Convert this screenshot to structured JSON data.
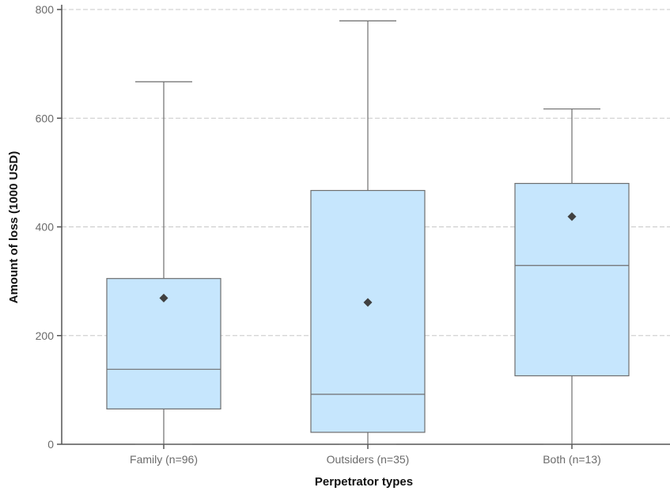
{
  "chart_data": {
    "type": "boxplot",
    "title": "",
    "xlabel": "Perpetrator types",
    "ylabel": "Amount of loss (1000 USD)",
    "ylim": [
      0,
      800
    ],
    "yticks": [
      0,
      200,
      400,
      600,
      800
    ],
    "grid": true,
    "categories": [
      "Family (n=96)",
      "Outsiders (n=35)",
      "Both (n=13)"
    ],
    "boxes": [
      {
        "whisker_low": 0,
        "q1": 65,
        "median": 138,
        "q3": 305,
        "whisker_high": 667,
        "mean": 269
      },
      {
        "whisker_low": 0,
        "q1": 22,
        "median": 92,
        "q3": 467,
        "whisker_high": 779,
        "mean": 261
      },
      {
        "whisker_low": 0,
        "q1": 126,
        "median": 329,
        "q3": 480,
        "whisker_high": 617,
        "mean": 419
      }
    ],
    "colors": {
      "box_fill": "#c6e6fd",
      "box_stroke": "#6e6e6e",
      "mean_marker": "#404040",
      "grid": "#c8c8c8",
      "axis": "#555555"
    }
  }
}
